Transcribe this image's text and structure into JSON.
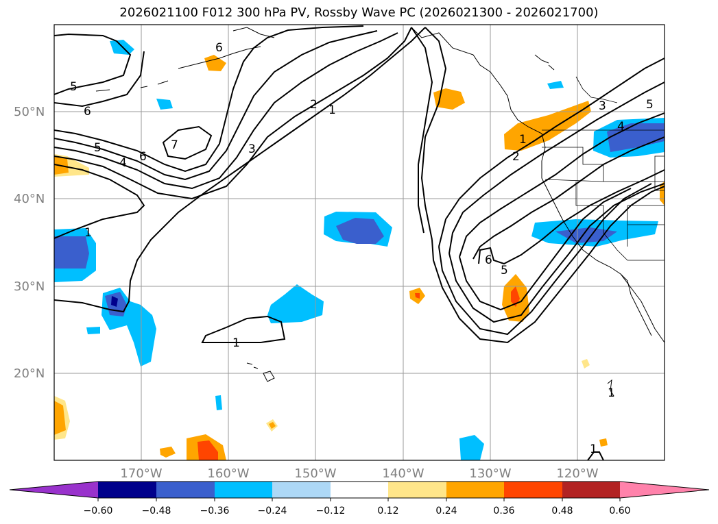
{
  "title": "2026021100 F012 300 hPa PV, Rossby Wave PC (2026021300 - 2026021700)",
  "longitude_labels": [
    "170°W",
    "160°W",
    "150°W",
    "140°W",
    "130°W",
    "120°W"
  ],
  "latitude_labels": [
    "50°N",
    "40°N",
    "30°N",
    "20°N"
  ],
  "colorbar": {
    "ticks": [
      "−0.60",
      "−0.48",
      "−0.36",
      "−0.24",
      "−0.12",
      "0.12",
      "0.24",
      "0.36",
      "0.48",
      "0.60"
    ],
    "colors": [
      "#9932cc",
      "#00008b",
      "#3a5fcd",
      "#00bfff",
      "#add8f6",
      "#ffffff",
      "#ffe68a",
      "#ffa500",
      "#ff4500",
      "#b22222",
      "#ff82ab"
    ]
  },
  "pv_contour_labels": [
    "6",
    "5",
    "6",
    "5",
    "4",
    "6",
    "7",
    "3",
    "2",
    "1",
    "1",
    "1",
    "2",
    "1",
    "6",
    "5",
    "3",
    "4",
    "5",
    "1",
    "1"
  ]
}
